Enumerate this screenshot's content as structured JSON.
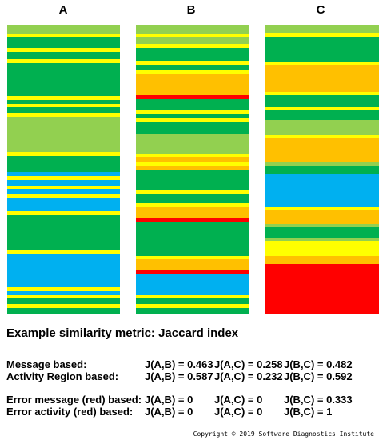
{
  "column_labels": [
    "A",
    "B",
    "C"
  ],
  "colors": {
    "green": "#00b050",
    "lightgreen": "#92d050",
    "yellow": "#ffff00",
    "orange": "#ffc000",
    "red": "#ff0000",
    "blue": "#00b0f0"
  },
  "strips": [
    {
      "name": "A",
      "bands": [
        [
          "lightgreen",
          10
        ],
        [
          "yellow",
          3
        ],
        [
          "green",
          12
        ],
        [
          "yellow",
          4
        ],
        [
          "green",
          8
        ],
        [
          "yellow",
          4
        ],
        [
          "green",
          36
        ],
        [
          "yellow",
          4
        ],
        [
          "green",
          4
        ],
        [
          "yellow",
          4
        ],
        [
          "green",
          6
        ],
        [
          "yellow",
          4
        ],
        [
          "lightgreen",
          38
        ],
        [
          "yellow",
          4
        ],
        [
          "green",
          18
        ],
        [
          "blue",
          4
        ],
        [
          "yellow",
          4
        ],
        [
          "blue",
          6
        ],
        [
          "yellow",
          4
        ],
        [
          "blue",
          6
        ],
        [
          "yellow",
          4
        ],
        [
          "blue",
          14
        ],
        [
          "yellow",
          4
        ],
        [
          "green",
          38
        ],
        [
          "yellow",
          4
        ],
        [
          "blue",
          36
        ],
        [
          "yellow",
          4
        ],
        [
          "blue",
          4
        ],
        [
          "yellow",
          4
        ],
        [
          "green",
          6
        ],
        [
          "yellow",
          4
        ],
        [
          "green",
          7
        ]
      ]
    },
    {
      "name": "B",
      "bands": [
        [
          "lightgreen",
          10
        ],
        [
          "yellow",
          3
        ],
        [
          "lightgreen",
          8
        ],
        [
          "yellow",
          4
        ],
        [
          "green",
          14
        ],
        [
          "yellow",
          4
        ],
        [
          "green",
          6
        ],
        [
          "yellow",
          3
        ],
        [
          "orange",
          24
        ],
        [
          "red",
          4
        ],
        [
          "green",
          12
        ],
        [
          "yellow",
          4
        ],
        [
          "green",
          4
        ],
        [
          "yellow",
          4
        ],
        [
          "green",
          14
        ],
        [
          "lightgreen",
          20
        ],
        [
          "yellow",
          4
        ],
        [
          "orange",
          6
        ],
        [
          "yellow",
          4
        ],
        [
          "orange",
          4
        ],
        [
          "green",
          22
        ],
        [
          "yellow",
          4
        ],
        [
          "green",
          10
        ],
        [
          "yellow",
          4
        ],
        [
          "orange",
          12
        ],
        [
          "red",
          4
        ],
        [
          "green",
          36
        ],
        [
          "yellow",
          4
        ],
        [
          "orange",
          12
        ],
        [
          "red",
          4
        ],
        [
          "blue",
          22
        ],
        [
          "yellow",
          4
        ],
        [
          "green",
          6
        ],
        [
          "yellow",
          4
        ],
        [
          "green",
          7
        ]
      ]
    },
    {
      "name": "C",
      "bands": [
        [
          "lightgreen",
          10
        ],
        [
          "yellow",
          4
        ],
        [
          "green",
          30
        ],
        [
          "yellow",
          4
        ],
        [
          "orange",
          32
        ],
        [
          "yellow",
          4
        ],
        [
          "green",
          14
        ],
        [
          "yellow",
          4
        ],
        [
          "green",
          12
        ],
        [
          "lightgreen",
          18
        ],
        [
          "yellow",
          4
        ],
        [
          "orange",
          28
        ],
        [
          "lightgreen",
          4
        ],
        [
          "green",
          10
        ],
        [
          "blue",
          40
        ],
        [
          "yellow",
          4
        ],
        [
          "orange",
          16
        ],
        [
          "lightgreen",
          4
        ],
        [
          "green",
          12
        ],
        [
          "lightgreen",
          4
        ],
        [
          "yellow",
          18
        ],
        [
          "orange",
          10
        ],
        [
          "red",
          60
        ]
      ]
    }
  ],
  "heading": "Example similarity metric: Jaccard index",
  "rows": [
    {
      "label": "Message based:",
      "ab": "J(A,B) = 0.463",
      "ac": "J(A,C) = 0.258",
      "bc": "J(B,C) = 0.482"
    },
    {
      "label": "Activity Region based:",
      "ab": "J(A,B) = 0.587",
      "ac": "J(A,C) = 0.232",
      "bc": "J(B,C) = 0.592"
    },
    {
      "label": "Error message (red) based:",
      "ab": "J(A,B) = 0",
      "ac": "J(A,C) = 0",
      "bc": "J(B,C) = 0.333"
    },
    {
      "label": "Error activity (red) based:",
      "ab": "J(A,B) = 0",
      "ac": "J(A,C) = 0",
      "bc": "J(B,C) = 1"
    }
  ],
  "copyright": "Copyright © 2019 Software Diagnostics Institute"
}
